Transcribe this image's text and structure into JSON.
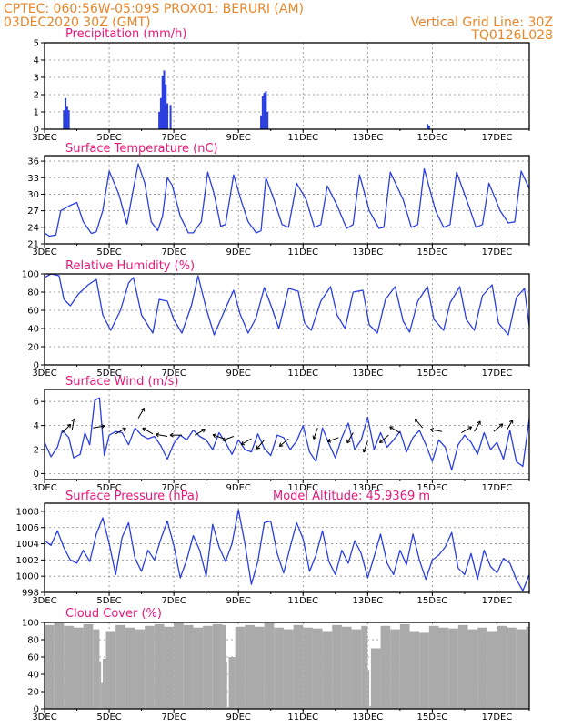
{
  "header": {
    "left_line1": "CPTEC:   060:56W-05:09S   PROX01: BERURI (AM)",
    "left_line2": "03DEC2020 30Z (GMT)",
    "right_line1": "Vertical Grid Line: 30Z",
    "right_line2": "TQ0126L028"
  },
  "colors": {
    "header": "#e8862a",
    "title": "#e6167a",
    "series": "#2b3fe0",
    "cloud": "#aaaaaa"
  },
  "x_axis": {
    "start_day": 3,
    "end_day": 18,
    "tick_days": [
      3,
      5,
      7,
      9,
      11,
      13,
      15,
      17
    ],
    "tick_labels": [
      "3DEC",
      "5DEC",
      "7DEC",
      "9DEC",
      "11DEC",
      "13DEC",
      "15DEC",
      "17DEC"
    ],
    "grid_days": [
      5,
      7,
      9,
      11,
      13,
      15,
      17
    ]
  },
  "chart_data": [
    {
      "id": "precip",
      "type": "bar",
      "title": "Precipitation (mm/h)",
      "ylim": [
        0,
        5
      ],
      "yticks": [
        0,
        1,
        2,
        3,
        4,
        5
      ],
      "x": [
        3.6,
        3.65,
        3.7,
        3.75,
        6.55,
        6.6,
        6.65,
        6.7,
        6.75,
        6.8,
        6.9,
        9.7,
        9.75,
        9.8,
        9.85,
        9.9,
        14.85,
        14.9
      ],
      "values": [
        1.1,
        1.8,
        1.3,
        1.1,
        1.0,
        1.8,
        3.1,
        3.4,
        2.6,
        1.5,
        1.4,
        0.8,
        1.9,
        2.1,
        2.2,
        1.0,
        0.3,
        0.2
      ]
    },
    {
      "id": "temp",
      "type": "line",
      "title": "Surface Temperature (nC)",
      "ylim": [
        21,
        37
      ],
      "yticks": [
        21,
        24,
        27,
        30,
        33,
        36
      ],
      "x": [
        3.0,
        3.15,
        3.35,
        3.5,
        3.8,
        4.0,
        4.2,
        4.45,
        4.6,
        4.8,
        5.0,
        5.3,
        5.55,
        5.75,
        5.9,
        6.1,
        6.3,
        6.5,
        6.65,
        6.8,
        6.95,
        7.2,
        7.45,
        7.6,
        7.85,
        8.05,
        8.25,
        8.45,
        8.6,
        8.85,
        9.1,
        9.3,
        9.55,
        9.7,
        9.85,
        10.1,
        10.35,
        10.55,
        10.8,
        11.1,
        11.35,
        11.55,
        11.75,
        12.05,
        12.35,
        12.55,
        12.75,
        13.05,
        13.35,
        13.5,
        13.7,
        14.1,
        14.35,
        14.55,
        14.75,
        15.1,
        15.35,
        15.55,
        15.75,
        16.15,
        16.35,
        16.55,
        16.75,
        17.1,
        17.35,
        17.55,
        17.75,
        18.0
      ],
      "values": [
        23,
        22.4,
        22.6,
        27,
        28,
        28.5,
        25,
        22.9,
        23.2,
        27,
        34.2,
        30,
        24.6,
        31,
        35.5,
        32,
        25,
        23.4,
        26,
        33,
        31.6,
        26,
        23,
        23,
        25,
        34,
        30,
        24.2,
        24.5,
        33.5,
        28.5,
        25,
        23,
        23.4,
        33,
        29,
        24.5,
        24,
        32,
        29,
        24,
        24.5,
        31.5,
        28,
        23.8,
        24.5,
        33.5,
        27,
        23.8,
        24,
        34,
        29,
        24,
        24.5,
        34.6,
        27,
        24,
        24.5,
        34,
        27.5,
        24,
        24.5,
        32,
        27,
        24.8,
        25,
        34.2,
        31
      ]
    },
    {
      "id": "rh",
      "type": "line",
      "title": "Relative Humidity (%)",
      "ylim": [
        0,
        100
      ],
      "yticks": [
        0,
        20,
        40,
        60,
        80,
        100
      ],
      "x": [
        3.0,
        3.2,
        3.45,
        3.6,
        3.8,
        4.05,
        4.35,
        4.6,
        4.8,
        5.05,
        5.35,
        5.6,
        5.75,
        6.0,
        6.35,
        6.55,
        6.8,
        7.0,
        7.25,
        7.55,
        7.75,
        8.0,
        8.25,
        8.55,
        8.85,
        9.05,
        9.3,
        9.55,
        9.8,
        10.0,
        10.25,
        10.55,
        10.85,
        11.05,
        11.25,
        11.55,
        11.85,
        12.05,
        12.3,
        12.55,
        12.85,
        13.05,
        13.3,
        13.55,
        13.85,
        14.1,
        14.3,
        14.55,
        14.85,
        15.05,
        15.35,
        15.55,
        15.85,
        16.05,
        16.3,
        16.55,
        16.85,
        17.05,
        17.35,
        17.6,
        17.85,
        18.0
      ],
      "values": [
        96,
        100,
        98,
        72,
        65,
        78,
        88,
        94,
        55,
        38,
        60,
        90,
        96,
        55,
        35,
        72,
        70,
        50,
        35,
        66,
        98,
        62,
        33,
        58,
        82,
        56,
        35,
        52,
        85,
        66,
        40,
        84,
        81,
        46,
        38,
        70,
        86,
        55,
        40,
        80,
        82,
        44,
        35,
        72,
        86,
        48,
        36,
        70,
        86,
        50,
        38,
        68,
        86,
        50,
        38,
        76,
        88,
        46,
        33,
        74,
        84,
        42
      ]
    },
    {
      "id": "wind",
      "type": "line",
      "title": "Surface Wind (m/s)",
      "ylim": [
        -0.5,
        7
      ],
      "yticks": [
        0,
        2,
        4,
        6
      ],
      "x": [
        3.0,
        3.2,
        3.4,
        3.55,
        3.75,
        3.9,
        4.1,
        4.25,
        4.4,
        4.55,
        4.7,
        4.85,
        5.0,
        5.2,
        5.4,
        5.6,
        5.8,
        6.0,
        6.2,
        6.4,
        6.6,
        6.8,
        7.0,
        7.2,
        7.4,
        7.6,
        7.8,
        8.0,
        8.2,
        8.4,
        8.6,
        8.8,
        9.0,
        9.2,
        9.4,
        9.6,
        9.8,
        10.0,
        10.2,
        10.4,
        10.6,
        10.8,
        11.0,
        11.2,
        11.4,
        11.6,
        11.8,
        12.0,
        12.2,
        12.4,
        12.6,
        12.8,
        13.0,
        13.2,
        13.4,
        13.6,
        13.8,
        14.0,
        14.2,
        14.4,
        14.6,
        14.8,
        15.0,
        15.2,
        15.4,
        15.6,
        15.8,
        16.0,
        16.2,
        16.4,
        16.6,
        16.8,
        17.0,
        17.2,
        17.4,
        17.6,
        17.8,
        18.0
      ],
      "values": [
        2.6,
        1.4,
        2.2,
        3.6,
        3.0,
        1.3,
        1.6,
        3.4,
        2.4,
        6.1,
        6.3,
        1.5,
        3.2,
        3.5,
        3.4,
        2.4,
        3.8,
        3.2,
        2.9,
        3.1,
        2.3,
        1.2,
        2.5,
        3.2,
        2.8,
        3.6,
        3.1,
        2.8,
        2.0,
        3.4,
        2.6,
        1.6,
        2.8,
        2.0,
        1.8,
        3.3,
        2.1,
        1.5,
        3.2,
        3.0,
        2.0,
        2.7,
        4.0,
        1.8,
        1.0,
        3.8,
        2.5,
        1.3,
        3.0,
        4.2,
        2.0,
        2.8,
        4.7,
        2.0,
        3.4,
        2.2,
        2.8,
        3.5,
        1.8,
        3.0,
        3.6,
        2.4,
        1.0,
        2.8,
        2.2,
        0.3,
        2.4,
        3.2,
        2.6,
        1.6,
        3.4,
        2.0,
        2.6,
        1.2,
        3.6,
        1.0,
        0.6,
        4.6
      ],
      "arrows": [
        {
          "day": 3.55,
          "speed": 3.4,
          "dir": 45
        },
        {
          "day": 3.85,
          "speed": 3.6,
          "dir": 10
        },
        {
          "day": 4.5,
          "speed": 3.8,
          "dir": 80
        },
        {
          "day": 5.2,
          "speed": 3.3,
          "dir": 60
        },
        {
          "day": 5.9,
          "speed": 4.6,
          "dir": 30
        },
        {
          "day": 6.35,
          "speed": 3.3,
          "dir": 300
        },
        {
          "day": 6.8,
          "speed": 3.1,
          "dir": 280
        },
        {
          "day": 7.25,
          "speed": 3.2,
          "dir": 270
        },
        {
          "day": 7.65,
          "speed": 3.2,
          "dir": 60
        },
        {
          "day": 8.55,
          "speed": 2.9,
          "dir": 290
        },
        {
          "day": 8.85,
          "speed": 3.1,
          "dir": 250
        },
        {
          "day": 9.4,
          "speed": 2.9,
          "dir": 240
        },
        {
          "day": 9.8,
          "speed": 2.8,
          "dir": 220
        },
        {
          "day": 10.55,
          "speed": 2.9,
          "dir": 230
        },
        {
          "day": 11.45,
          "speed": 3.8,
          "dir": 200
        },
        {
          "day": 12.1,
          "speed": 3.0,
          "dir": 250
        },
        {
          "day": 12.55,
          "speed": 3.4,
          "dir": 210
        },
        {
          "day": 13.0,
          "speed": 2.7,
          "dir": 200
        },
        {
          "day": 13.65,
          "speed": 3.2,
          "dir": 230
        },
        {
          "day": 14.0,
          "speed": 3.4,
          "dir": 300
        },
        {
          "day": 14.7,
          "speed": 3.8,
          "dir": 320
        },
        {
          "day": 15.3,
          "speed": 3.5,
          "dir": 280
        },
        {
          "day": 15.9,
          "speed": 3.4,
          "dir": 60
        },
        {
          "day": 16.3,
          "speed": 3.5,
          "dir": 30
        },
        {
          "day": 16.9,
          "speed": 3.5,
          "dir": 50
        },
        {
          "day": 17.3,
          "speed": 3.6,
          "dir": 30
        }
      ]
    },
    {
      "id": "pressure",
      "type": "line",
      "title": "Surface Pressure (hPa)",
      "annotation": "Model Altitude: 45.9369 m",
      "ylim": [
        998,
        1009
      ],
      "yticks": [
        998,
        1000,
        1002,
        1004,
        1006,
        1008
      ],
      "x": [
        3.0,
        3.2,
        3.4,
        3.6,
        3.8,
        4.0,
        4.2,
        4.4,
        4.6,
        4.8,
        5.0,
        5.2,
        5.4,
        5.6,
        5.8,
        6.0,
        6.2,
        6.4,
        6.6,
        6.8,
        7.0,
        7.2,
        7.4,
        7.6,
        7.8,
        8.0,
        8.2,
        8.4,
        8.6,
        8.8,
        9.0,
        9.2,
        9.4,
        9.6,
        9.8,
        10.0,
        10.2,
        10.4,
        10.6,
        10.8,
        11.0,
        11.2,
        11.4,
        11.6,
        11.8,
        12.0,
        12.2,
        12.4,
        12.6,
        12.8,
        13.0,
        13.2,
        13.4,
        13.6,
        13.8,
        14.0,
        14.2,
        14.4,
        14.6,
        14.8,
        15.0,
        15.2,
        15.4,
        15.6,
        15.8,
        16.0,
        16.2,
        16.4,
        16.6,
        16.8,
        17.0,
        17.2,
        17.4,
        17.6,
        17.8,
        18.0
      ],
      "values": [
        1004.4,
        1003.8,
        1005.6,
        1003.5,
        1002,
        1001.6,
        1003.2,
        1001.8,
        1005.2,
        1007.2,
        1004,
        1000.2,
        1004.8,
        1006.6,
        1002.2,
        1000.6,
        1003.2,
        1002,
        1004.6,
        1006.8,
        1003.8,
        999.8,
        1002,
        1005,
        1003.2,
        1000,
        1006.4,
        1003.6,
        1001.8,
        1004,
        1008.2,
        1004,
        999,
        1001.8,
        1006.6,
        1006.8,
        1002.8,
        1000.4,
        1003.6,
        1006.6,
        1004.6,
        1000.6,
        1002.6,
        1005.6,
        1001.8,
        1000.2,
        1003.2,
        1001.6,
        1004.4,
        1002.8,
        999.8,
        1002.4,
        1005.2,
        1001.6,
        1000.2,
        1003.2,
        1001.4,
        1005.2,
        1002,
        999.6,
        1002,
        1002.6,
        1003.6,
        1005.4,
        1001,
        1000.2,
        1002.8,
        999.6,
        1003.2,
        1001.2,
        1000.4,
        1002.2,
        1001.6,
        999.6,
        998.2,
        1000.2
      ]
    },
    {
      "id": "cloud",
      "type": "area",
      "title": "Cloud Cover (%)",
      "ylim": [
        0,
        100
      ],
      "yticks": [
        0,
        20,
        40,
        60,
        80,
        100
      ],
      "x": [
        3.0,
        3.3,
        3.6,
        3.9,
        4.2,
        4.5,
        4.7,
        4.75,
        4.8,
        4.9,
        5.2,
        5.5,
        5.8,
        6.1,
        6.4,
        6.7,
        7.0,
        7.3,
        7.6,
        7.9,
        8.2,
        8.5,
        8.6,
        8.65,
        8.7,
        8.9,
        9.2,
        9.5,
        9.8,
        10.1,
        10.4,
        10.7,
        11.0,
        11.3,
        11.6,
        11.9,
        12.2,
        12.5,
        12.8,
        13.0,
        13.05,
        13.1,
        13.4,
        13.7,
        14.0,
        14.3,
        14.6,
        14.9,
        15.2,
        15.5,
        15.8,
        16.1,
        16.4,
        16.7,
        17.0,
        17.3,
        17.6,
        17.9,
        18.0
      ],
      "values": [
        97,
        99,
        96,
        94,
        98,
        92,
        55,
        30,
        58,
        90,
        97,
        94,
        92,
        96,
        98,
        95,
        99,
        97,
        94,
        96,
        98,
        97,
        55,
        2,
        60,
        95,
        97,
        95,
        99,
        94,
        92,
        97,
        94,
        93,
        90,
        97,
        95,
        92,
        96,
        45,
        3,
        70,
        96,
        92,
        98,
        90,
        88,
        96,
        94,
        93,
        97,
        92,
        94,
        90,
        96,
        94,
        92,
        95,
        94
      ]
    }
  ]
}
